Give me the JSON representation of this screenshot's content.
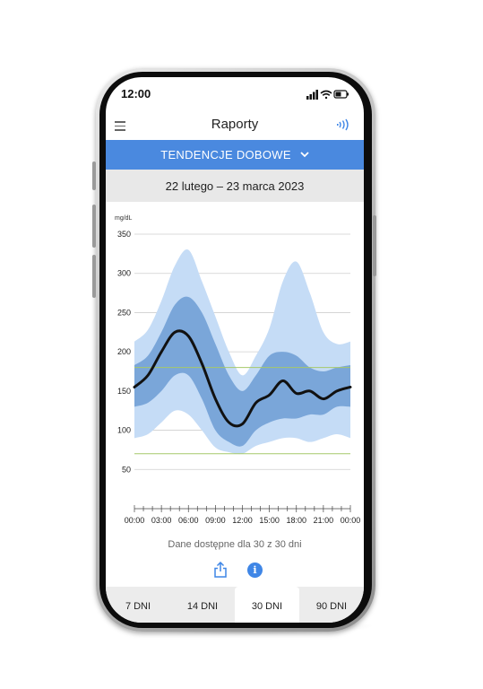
{
  "status_bar": {
    "time": "12:00"
  },
  "header": {
    "title": "Raporty"
  },
  "report_selector": {
    "label": "TENDENCJE DOBOWE"
  },
  "date_range": "22 lutego – 23 marca 2023",
  "colors": {
    "accent": "#4a89df",
    "band_outer": "#c5dcf6",
    "band_inner": "#7aa6d9",
    "median": "#111111",
    "target_line": "#a6c96a"
  },
  "chart_data": {
    "type": "area",
    "ylabel": "mg/dL",
    "ylim": [
      0,
      350
    ],
    "y_ticks": [
      350,
      300,
      250,
      200,
      150,
      100,
      50
    ],
    "x_ticks": [
      "00:00",
      "03:00",
      "06:00",
      "09:00",
      "12:00",
      "15:00",
      "18:00",
      "21:00",
      "00:00"
    ],
    "x_hours": [
      0,
      1.5,
      3,
      4.5,
      6,
      7.5,
      9,
      10.5,
      12,
      13.5,
      15,
      16.5,
      18,
      19.5,
      21,
      22.5,
      24
    ],
    "target_range": [
      70,
      180
    ],
    "series": [
      {
        "role": "outer-upper",
        "values": [
          213,
          228,
          265,
          310,
          330,
          290,
          245,
          200,
          170,
          195,
          230,
          290,
          315,
          275,
          225,
          210,
          213
        ]
      },
      {
        "role": "inner-upper",
        "values": [
          183,
          195,
          225,
          260,
          270,
          250,
          210,
          170,
          150,
          170,
          195,
          200,
          195,
          180,
          175,
          180,
          183
        ]
      },
      {
        "role": "median",
        "values": [
          155,
          170,
          200,
          225,
          220,
          185,
          140,
          110,
          108,
          135,
          145,
          163,
          147,
          150,
          140,
          150,
          155
        ]
      },
      {
        "role": "inner-lower",
        "values": [
          130,
          135,
          150,
          170,
          170,
          140,
          100,
          85,
          80,
          100,
          110,
          115,
          115,
          120,
          120,
          130,
          130
        ]
      },
      {
        "role": "outer-lower",
        "values": [
          90,
          95,
          110,
          125,
          120,
          100,
          78,
          72,
          70,
          80,
          85,
          90,
          90,
          85,
          90,
          95,
          90
        ]
      }
    ]
  },
  "availability_text": "Dane dostępne dla 30 z 30 dni",
  "tabs": [
    {
      "label": "7 DNI"
    },
    {
      "label": "14 DNI"
    },
    {
      "label": "30 DNI"
    },
    {
      "label": "90 DNI"
    }
  ],
  "active_tab": "30 DNI"
}
